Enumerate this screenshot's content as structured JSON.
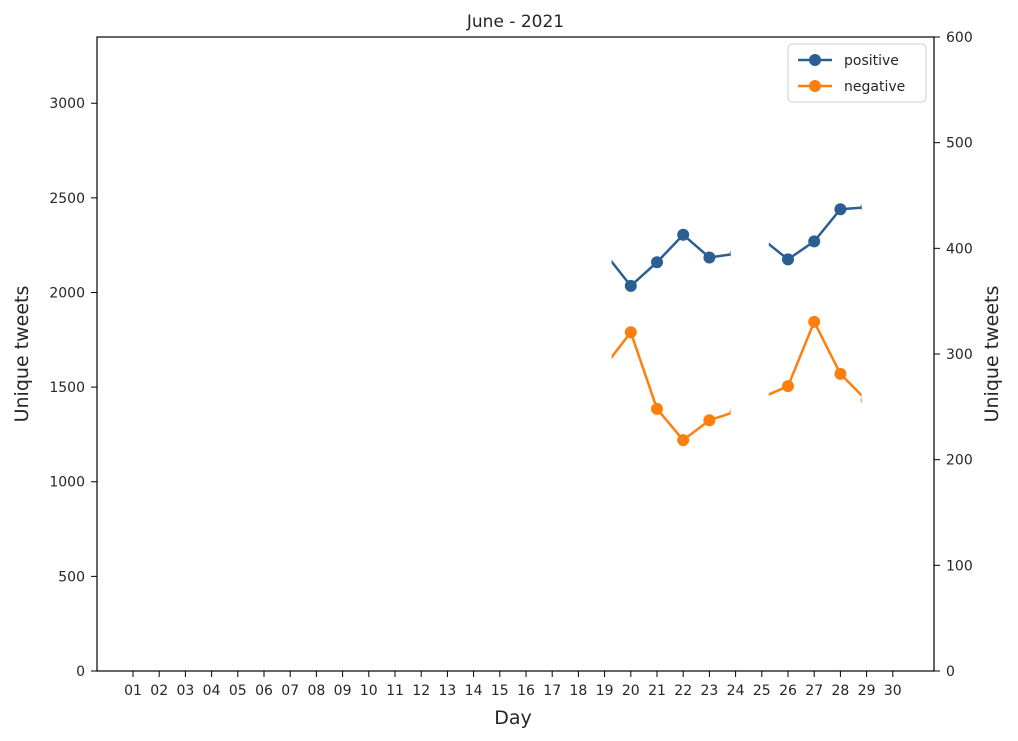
{
  "chart_data": {
    "type": "line",
    "title": "June - 2021",
    "xlabel": "Day",
    "ylabel_left": "Unique tweets",
    "ylabel_right": "Unique tweets",
    "categories": [
      "01",
      "02",
      "03",
      "04",
      "05",
      "06",
      "07",
      "08",
      "09",
      "10",
      "11",
      "12",
      "13",
      "14",
      "15",
      "16",
      "17",
      "18",
      "19",
      "20",
      "21",
      "22",
      "23",
      "24",
      "25",
      "26",
      "27",
      "28",
      "29",
      "30"
    ],
    "y_left": {
      "lim": [
        0,
        3350
      ],
      "ticks": [
        0,
        500,
        1000,
        1500,
        2000,
        2500,
        3000
      ]
    },
    "y_right": {
      "lim": [
        0,
        600
      ],
      "ticks": [
        0,
        100,
        200,
        300,
        400,
        500,
        600
      ]
    },
    "legend_position": "top-right",
    "series": [
      {
        "name": "positive",
        "color": "#2b5f91",
        "axis": "left",
        "segments": [
          {
            "x": [
              "19",
              "20",
              "21",
              "22",
              "23",
              "24"
            ],
            "y": [
              2210,
              2035,
              2160,
              2305,
              2185,
              2205
            ],
            "visible_range": [
              "19",
              "24"
            ]
          },
          {
            "x": [
              "25",
              "26",
              "27",
              "28",
              "29"
            ],
            "y": [
              2285,
              2175,
              2270,
              2440,
              2450
            ],
            "visible_range": [
              "25",
              "29"
            ]
          }
        ]
      },
      {
        "name": "negative",
        "color": "#ff7f0e",
        "axis": "left",
        "segments": [
          {
            "x": [
              "19",
              "20",
              "21",
              "22",
              "23",
              "24"
            ],
            "y": [
              1610,
              1790,
              1385,
              1220,
              1325,
              1370
            ],
            "visible_range": [
              "19",
              "24"
            ]
          },
          {
            "x": [
              "25",
              "26",
              "27",
              "28",
              "29"
            ],
            "y": [
              1445,
              1505,
              1845,
              1570,
              1430
            ],
            "visible_range": [
              "25",
              "29"
            ]
          }
        ]
      }
    ]
  }
}
